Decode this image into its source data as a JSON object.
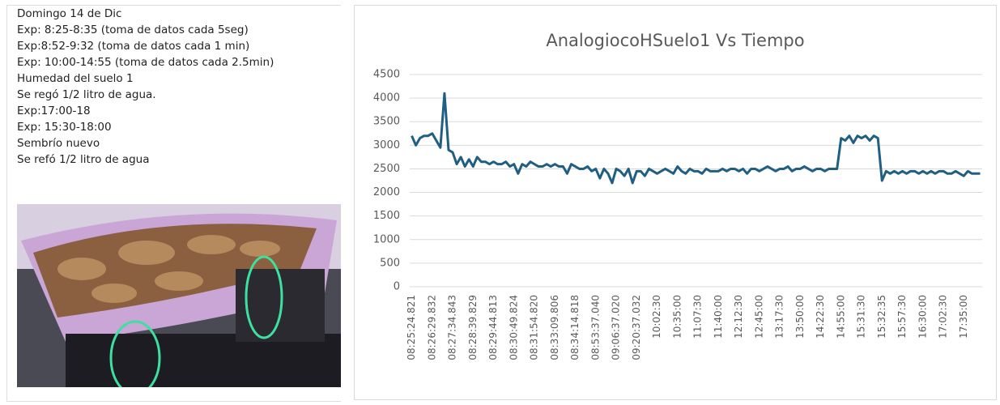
{
  "notes": [
    "Domingo 14 de Dic",
    "Exp: 8:25-8:35 (toma de datos cada 5seg)",
    "Exp:8:52-9:32 (toma de datos cada 1 min)",
    "Exp: 10:00-14:55 (toma de datos cada 2.5min)",
    "Humedad del suelo 1",
    "Se regó 1/2 litro de agua.",
    "Exp:17:00-18",
    "Exp: 15:30-18:00",
    "Sembrío nuevo",
    "Se refó 1/2 litro de agua"
  ],
  "chart_data": {
    "type": "line",
    "title": "AnalogiocoHSuelo1 Vs Tiempo",
    "categories": [
      "08:25:24.821",
      null,
      null,
      null,
      null,
      "08:26:29.832",
      null,
      null,
      null,
      null,
      "08:27:34.843",
      null,
      null,
      null,
      null,
      "08:28:39.829",
      null,
      null,
      null,
      null,
      "08:29:44.813",
      null,
      null,
      null,
      null,
      "08:30:49.824",
      null,
      null,
      null,
      null,
      "08:31:54.820",
      null,
      null,
      null,
      null,
      "08:33:09.806",
      null,
      null,
      null,
      null,
      "08:34:14.818",
      null,
      null,
      null,
      null,
      "08:53:37.040",
      null,
      null,
      null,
      null,
      "09:06:37.020",
      null,
      null,
      null,
      null,
      "09:20:37.032",
      null,
      null,
      null,
      null,
      "10:02:30",
      null,
      null,
      null,
      null,
      "10:35:00",
      null,
      null,
      null,
      null,
      "11:07:30",
      null,
      null,
      null,
      null,
      "11:40:00",
      null,
      null,
      null,
      null,
      "12:12:30",
      null,
      null,
      null,
      null,
      "12:45:00",
      null,
      null,
      null,
      null,
      "13:17:30",
      null,
      null,
      null,
      null,
      "13:50:00",
      null,
      null,
      null,
      null,
      "14:22:30",
      null,
      null,
      null,
      null,
      "14:55:00",
      null,
      null,
      null,
      null,
      "15:31:30",
      null,
      null,
      null,
      null,
      "15:32:35",
      null,
      null,
      null,
      null,
      "15:57:30",
      null,
      null,
      null,
      null,
      "16:30:00",
      null,
      null,
      null,
      null,
      "17:02:30",
      null,
      null,
      null,
      null,
      "17:35:00",
      null,
      null,
      null,
      null
    ],
    "series": [
      {
        "color": "#1f5f82",
        "values": [
          3200,
          3000,
          3150,
          3200,
          3200,
          3250,
          3100,
          2950,
          4100,
          2900,
          2850,
          2600,
          2750,
          2550,
          2700,
          2550,
          2750,
          2650,
          2650,
          2600,
          2650,
          2600,
          2600,
          2650,
          2550,
          2600,
          2400,
          2600,
          2550,
          2650,
          2600,
          2550,
          2550,
          2600,
          2550,
          2600,
          2550,
          2550,
          2400,
          2600,
          2550,
          2500,
          2500,
          2550,
          2450,
          2500,
          2300,
          2500,
          2400,
          2200,
          2500,
          2450,
          2350,
          2500,
          2200,
          2450,
          2450,
          2350,
          2500,
          2450,
          2400,
          2450,
          2500,
          2450,
          2400,
          2550,
          2450,
          2400,
          2500,
          2450,
          2450,
          2400,
          2500,
          2450,
          2450,
          2450,
          2500,
          2450,
          2500,
          2500,
          2450,
          2500,
          2400,
          2500,
          2500,
          2450,
          2500,
          2550,
          2500,
          2450,
          2500,
          2500,
          2550,
          2450,
          2500,
          2500,
          2550,
          2500,
          2450,
          2500,
          2500,
          2450,
          2500,
          2500,
          2500,
          3150,
          3100,
          3200,
          3050,
          3200,
          3150,
          3200,
          3100,
          3200,
          3150,
          2250,
          2450,
          2400,
          2450,
          2400,
          2450,
          2400,
          2450,
          2450,
          2400,
          2450,
          2400,
          2450,
          2400,
          2450,
          2450,
          2400,
          2400,
          2450,
          2400,
          2350,
          2450,
          2400,
          2400,
          2400
        ]
      }
    ],
    "ylim": [
      0,
      4500
    ],
    "yticks": [
      0,
      500,
      1000,
      1500,
      2000,
      2500,
      3000,
      3500,
      4000,
      4500
    ],
    "grid": true
  }
}
